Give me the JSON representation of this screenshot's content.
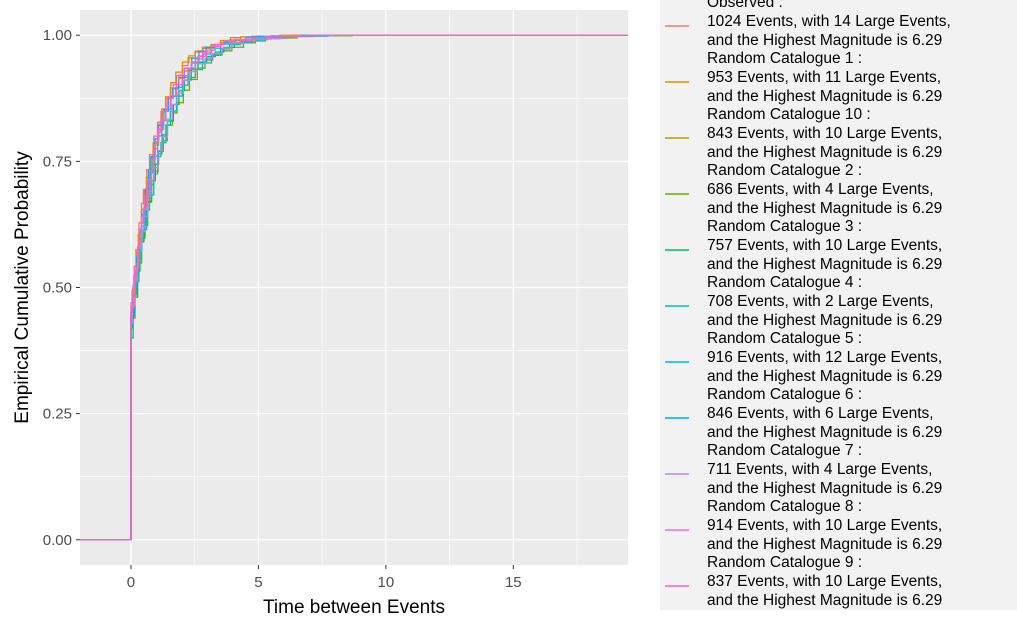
{
  "chart_data": {
    "type": "line",
    "subtype": "ecdf-step",
    "xlabel": "Time between Events",
    "ylabel": "Empirical Cumulative Probability",
    "xlim": [
      -2,
      19.5
    ],
    "ylim": [
      -0.05,
      1.05
    ],
    "x_ticks": [
      0,
      5,
      10,
      15
    ],
    "y_ticks": [
      0.0,
      0.25,
      0.5,
      0.75,
      1.0
    ],
    "y_tick_labels": [
      "0.00",
      "0.25",
      "0.50",
      "0.75",
      "1.00"
    ],
    "grid": true,
    "legend_position": "right",
    "background": "#EBEBEB",
    "series": [
      {
        "name": "Observed :",
        "detail_1": " 1024 Events, with 14 Large Events,",
        "detail_2": " and the Highest Magnitude is 6.29",
        "color": "#F8766D",
        "rate": 1.08,
        "first_y": 0.47,
        "max_x": 14.7
      },
      {
        "name": "Random Catalogue 1 :",
        "detail_1": " 953 Events, with 11 Large Events,",
        "detail_2": " and the Highest Magnitude is 6.29",
        "color": "#DB8E00",
        "rate": 1.12,
        "first_y": 0.45,
        "max_x": 12.0
      },
      {
        "name": "Random Catalogue 10 :",
        "detail_1": " 843 Events, with 10 Large Events,",
        "detail_2": " and the Highest Magnitude is 6.29",
        "color": "#AEA200",
        "rate": 1.0,
        "first_y": 0.44,
        "max_x": 11.5
      },
      {
        "name": "Random Catalogue 2 :",
        "detail_1": " 686 Events, with 4 Large Events,",
        "detail_2": " and the Highest Magnitude is 6.29",
        "color": "#64B200",
        "rate": 0.83,
        "first_y": 0.42,
        "max_x": 9.0
      },
      {
        "name": "Random Catalogue 3 :",
        "detail_1": " 757 Events, with 10 Large Events,",
        "detail_2": " and the Highest Magnitude is 6.29",
        "color": "#00BD5C",
        "rate": 0.9,
        "first_y": 0.4,
        "max_x": 10.5
      },
      {
        "name": "Random Catalogue 4 :",
        "detail_1": " 708 Events, with 2 Large Events,",
        "detail_2": " and the Highest Magnitude is 6.29",
        "color": "#00C1A7",
        "rate": 0.86,
        "first_y": 0.42,
        "max_x": 8.5
      },
      {
        "name": "Random Catalogue 5 :",
        "detail_1": " 916 Events, with 12 Large Events,",
        "detail_2": " and the Highest Magnitude is 6.29",
        "color": "#00BADE",
        "rate": 0.95,
        "first_y": 0.45,
        "max_x": 10.0
      },
      {
        "name": "Random Catalogue 6 :",
        "detail_1": " 846 Events, with 6 Large Events,",
        "detail_2": " and the Highest Magnitude is 6.29",
        "color": "#00A6FF",
        "rate": 1.04,
        "first_y": 0.44,
        "max_x": 7.0
      },
      {
        "name": "Random Catalogue 7 :",
        "detail_1": " 711 Events, with 4 Large Events,",
        "detail_2": " and the Highest Magnitude is 6.29",
        "color": "#B385FF",
        "rate": 0.88,
        "first_y": 0.43,
        "max_x": 9.5
      },
      {
        "name": "Random Catalogue 8 :",
        "detail_1": " 914 Events, with 10 Large Events,",
        "detail_2": " and the Highest Magnitude is 6.29",
        "color": "#EF67EB",
        "rate": 1.0,
        "first_y": 0.46,
        "max_x": 11.0
      },
      {
        "name": "Random Catalogue 9 :",
        "detail_1": " 837 Events, with 10 Large Events,",
        "detail_2": " and the Highest Magnitude is 6.29",
        "color": "#FF63B6",
        "rate": 0.98,
        "first_y": 0.45,
        "max_x": 12.5
      }
    ]
  }
}
